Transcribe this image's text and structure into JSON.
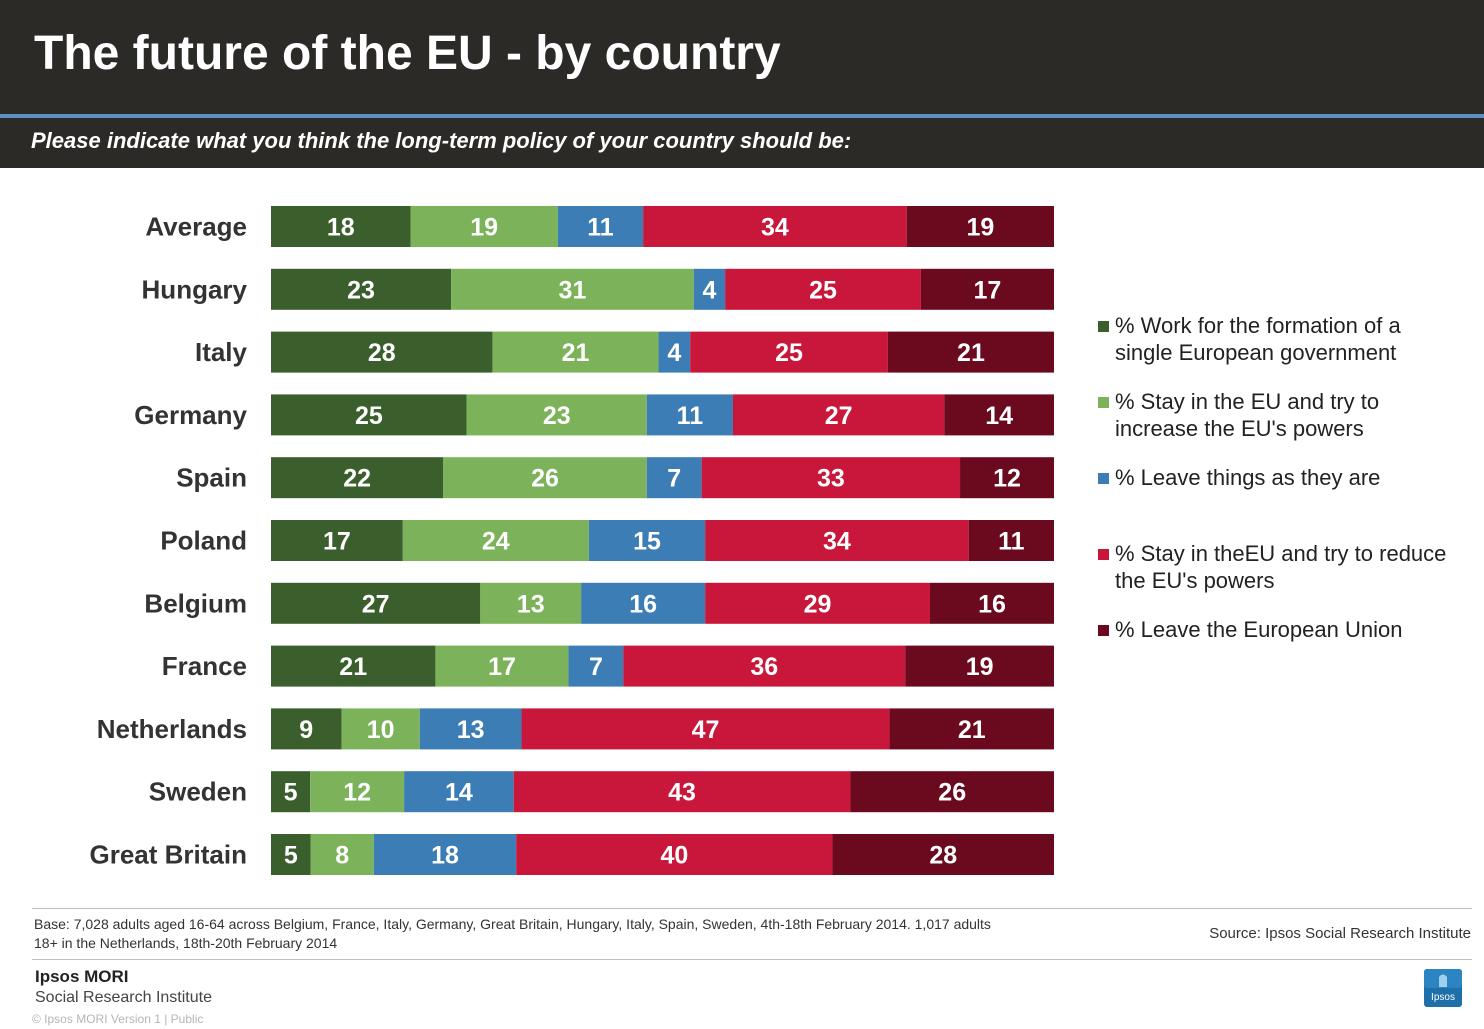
{
  "title": "The future of the EU - by country",
  "subtitle": "Please indicate what you think the long-term policy of your country should be:",
  "colors": {
    "header_bg": "#2b2a27",
    "header_rule": "#5b92c4",
    "series": [
      "#3a5e2c",
      "#7cb35a",
      "#3b7db4",
      "#c8173a",
      "#6b0a1e"
    ]
  },
  "chart_data": {
    "type": "bar",
    "orientation": "horizontal",
    "stacked": true,
    "categories": [
      "Average",
      "Hungary",
      "Italy",
      "Germany",
      "Spain",
      "Poland",
      "Belgium",
      "France",
      "Netherlands",
      "Sweden",
      "Great Britain"
    ],
    "series": [
      {
        "name": "% Work for the formation of a single European government",
        "color": "#3a5e2c",
        "values": [
          18,
          23,
          28,
          25,
          22,
          17,
          27,
          21,
          9,
          5,
          5
        ]
      },
      {
        "name": "% Stay in the EU and try to increase the EU's powers",
        "color": "#7cb35a",
        "values": [
          19,
          31,
          21,
          23,
          26,
          24,
          13,
          17,
          10,
          12,
          8
        ]
      },
      {
        "name": "% Leave things as they are",
        "color": "#3b7db4",
        "values": [
          11,
          4,
          4,
          11,
          7,
          15,
          16,
          7,
          13,
          14,
          18
        ]
      },
      {
        "name": "% Stay in theEU and try to reduce the EU's powers",
        "color": "#c8173a",
        "values": [
          34,
          25,
          25,
          27,
          33,
          34,
          29,
          36,
          47,
          43,
          40
        ]
      },
      {
        "name": "% Leave the European Union",
        "color": "#6b0a1e",
        "values": [
          19,
          17,
          21,
          14,
          12,
          11,
          16,
          19,
          21,
          26,
          28
        ]
      }
    ],
    "data_labels": true,
    "legend_position": "right",
    "grid": false
  },
  "legend": [
    {
      "lines": [
        "% Work for the formation of a",
        "single European government"
      ]
    },
    {
      "lines": [
        "% Stay in the EU and try to",
        "increase the EU's powers"
      ]
    },
    {
      "lines": [
        "% Leave things as they are"
      ]
    },
    {
      "lines": [
        "% Stay in theEU and try to reduce",
        "the EU's powers"
      ]
    },
    {
      "lines": [
        "% Leave the European Union"
      ]
    }
  ],
  "footer": {
    "base_note": "Base: 7,028 adults aged 16-64 across Belgium, France, Italy, Germany, Great Britain, Hungary, Italy, Spain, Sweden, 4th-18th February 2014. 1,017 adults 18+ in the Netherlands, 18th-20th February 2014",
    "source": "Source: Ipsos Social Research Institute",
    "brand_name": "Ipsos MORI",
    "brand_sub": "Social Research Institute",
    "brand_meta": "© Ipsos MORI     Version 1 | Public",
    "logo_text": "Ipsos"
  }
}
